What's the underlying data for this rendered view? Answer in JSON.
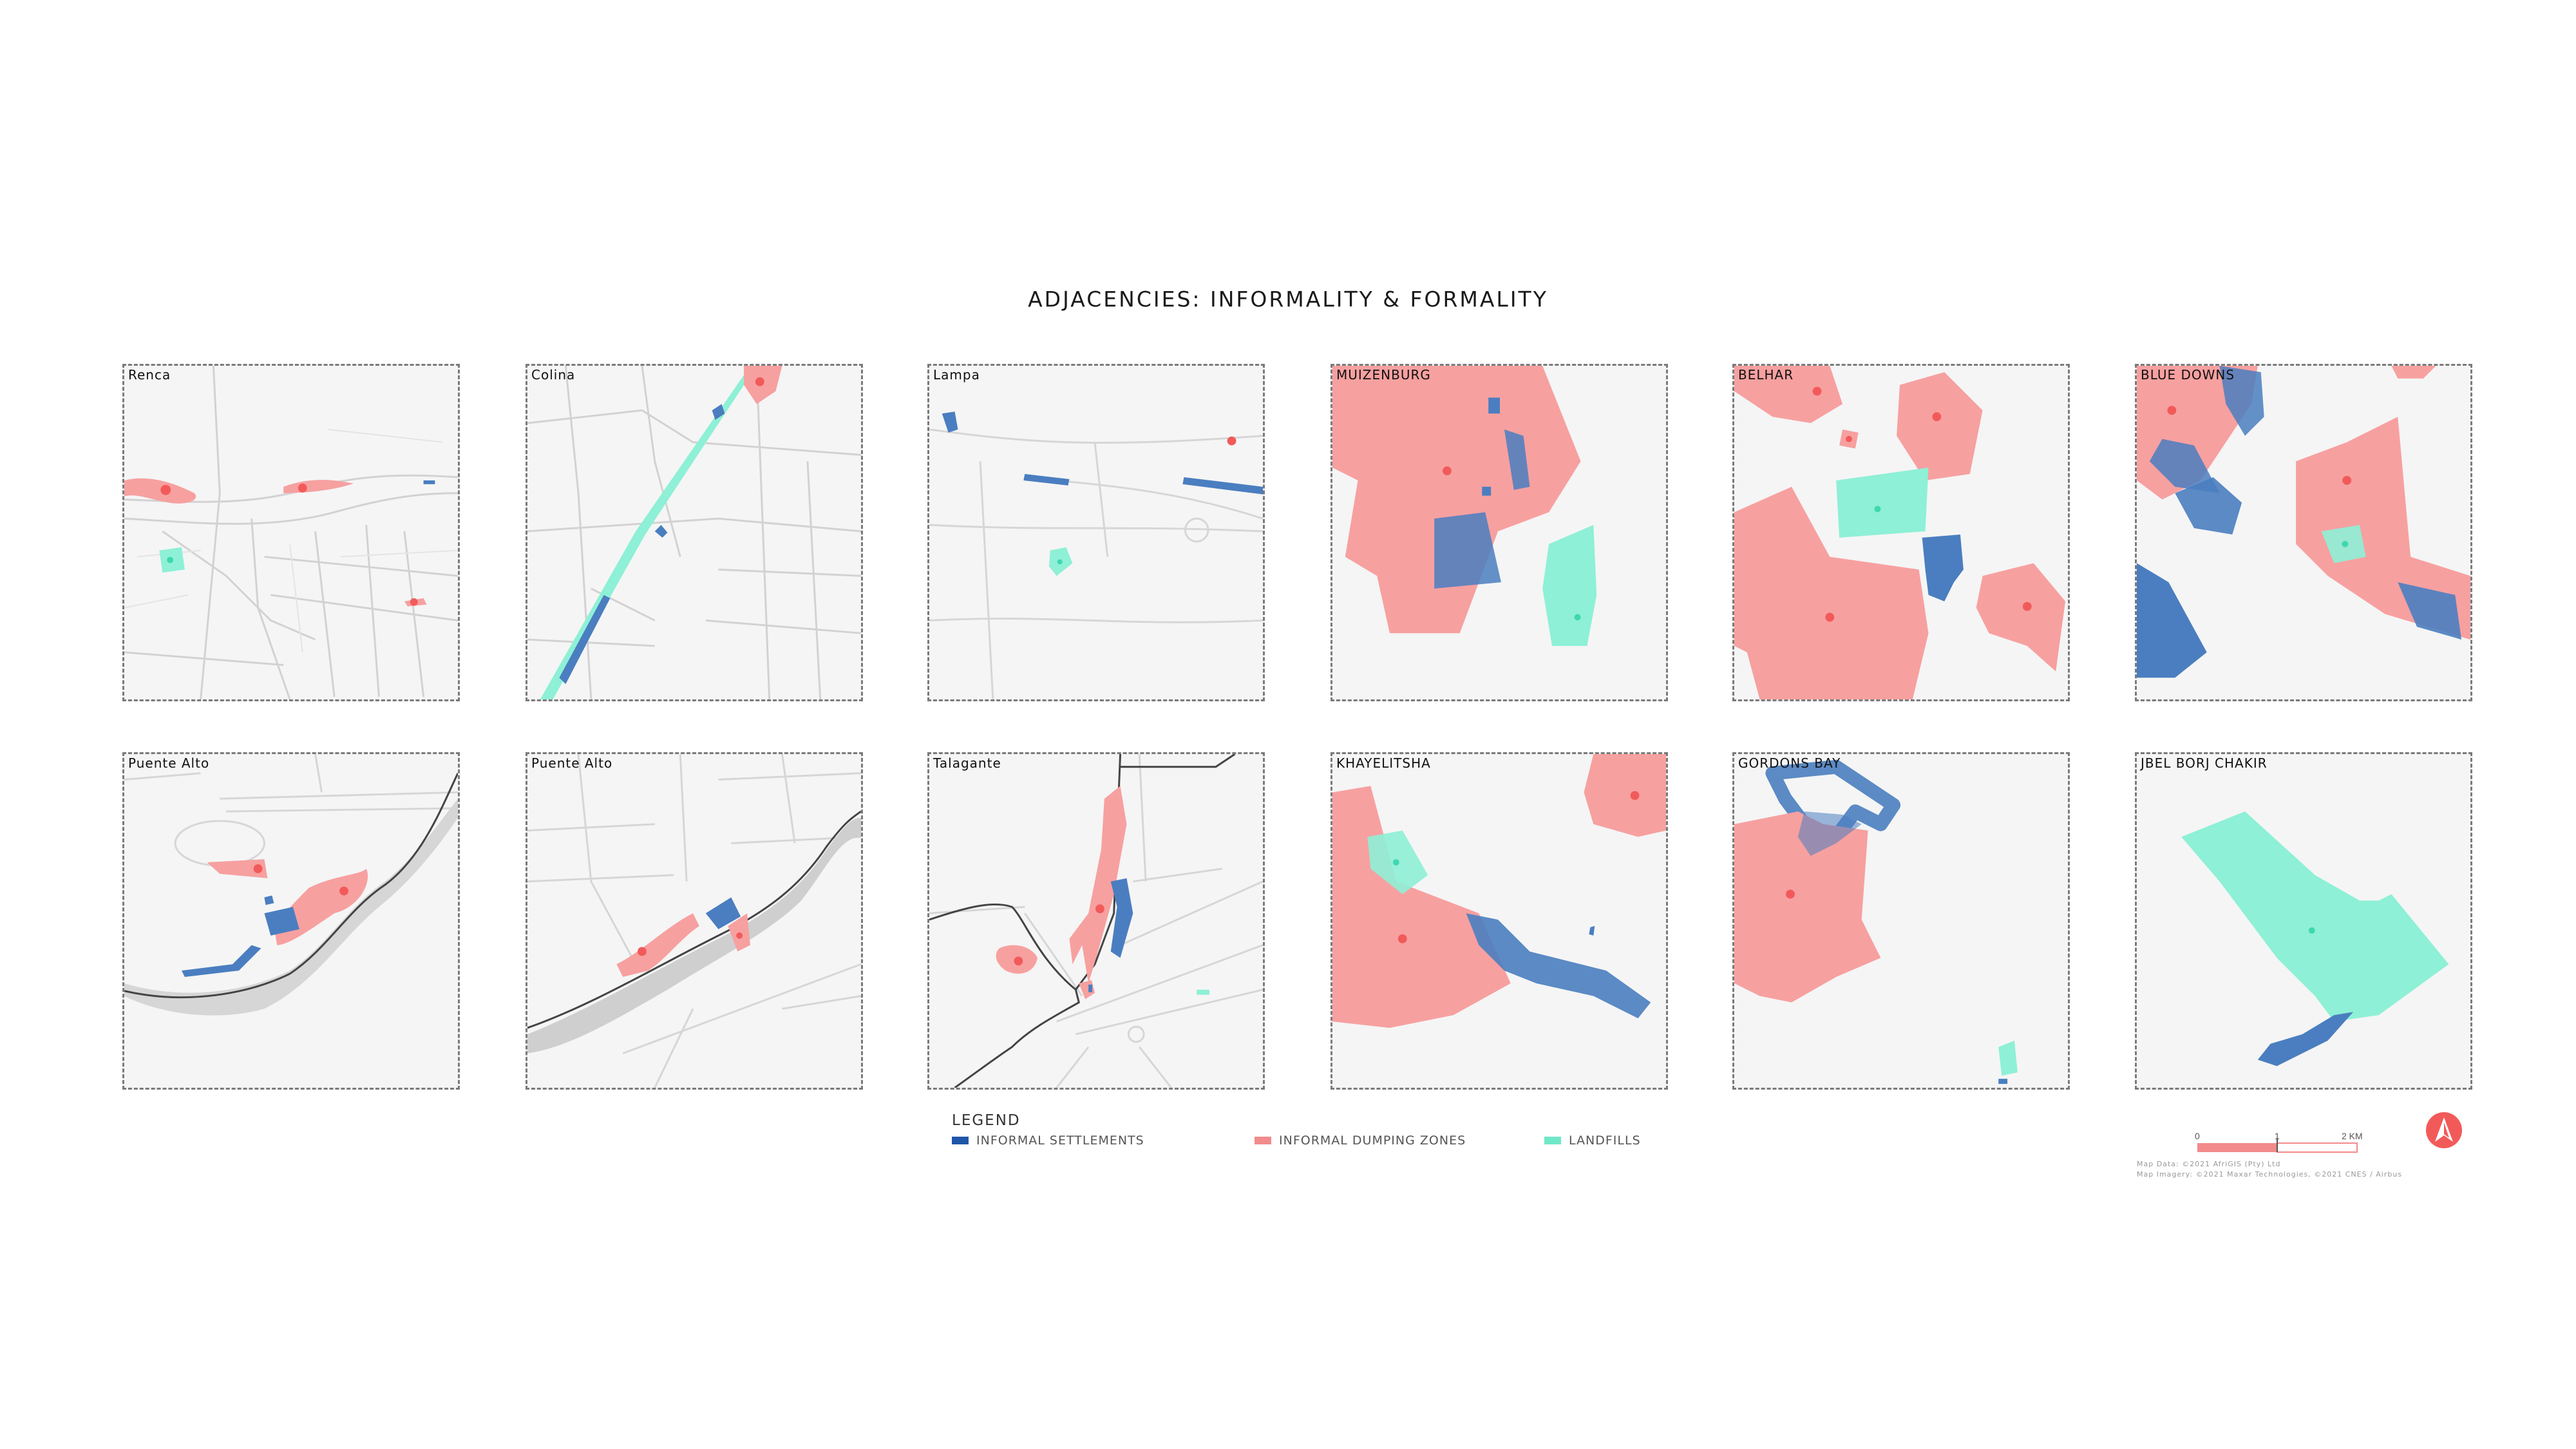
{
  "title": "ADJACENCIES: INFORMALITY & FORMALITY",
  "panels": [
    {
      "label": "Renca"
    },
    {
      "label": "Colina"
    },
    {
      "label": "Lampa"
    },
    {
      "label": "MUIZENBURG"
    },
    {
      "label": "BELHAR"
    },
    {
      "label": "BLUE DOWNS"
    },
    {
      "label": "Puente Alto"
    },
    {
      "label": "Puente Alto"
    },
    {
      "label": "Talagante"
    },
    {
      "label": "KHAYELITSHA"
    },
    {
      "label": "GORDONS BAY"
    },
    {
      "label": "JBEL BORJ CHAKIR"
    }
  ],
  "legend": {
    "title": "LEGEND",
    "items": [
      {
        "label": "INFORMAL SETTLEMENTS",
        "color": "#1f56a8"
      },
      {
        "label": "INFORMAL DUMPING ZONES",
        "color": "#f28b8b"
      },
      {
        "label": "LANDFILLS",
        "color": "#6fe8c8"
      }
    ]
  },
  "scale": {
    "start": "0",
    "mid": "1",
    "end": "2 KM"
  },
  "credits": {
    "line1": "Map Data: ©2021 AfriGIS (Pty) Ltd",
    "line2": "Map Imagery: ©2021 Maxar Technologies, ©2021 CNES / Airbus"
  },
  "colors": {
    "settlement": "#4a7ec0",
    "dumping": "#f7a0a0",
    "dumping_point": "#f25a5a",
    "landfill": "#8ef0d6",
    "landfill_point": "#3ed8b0"
  }
}
